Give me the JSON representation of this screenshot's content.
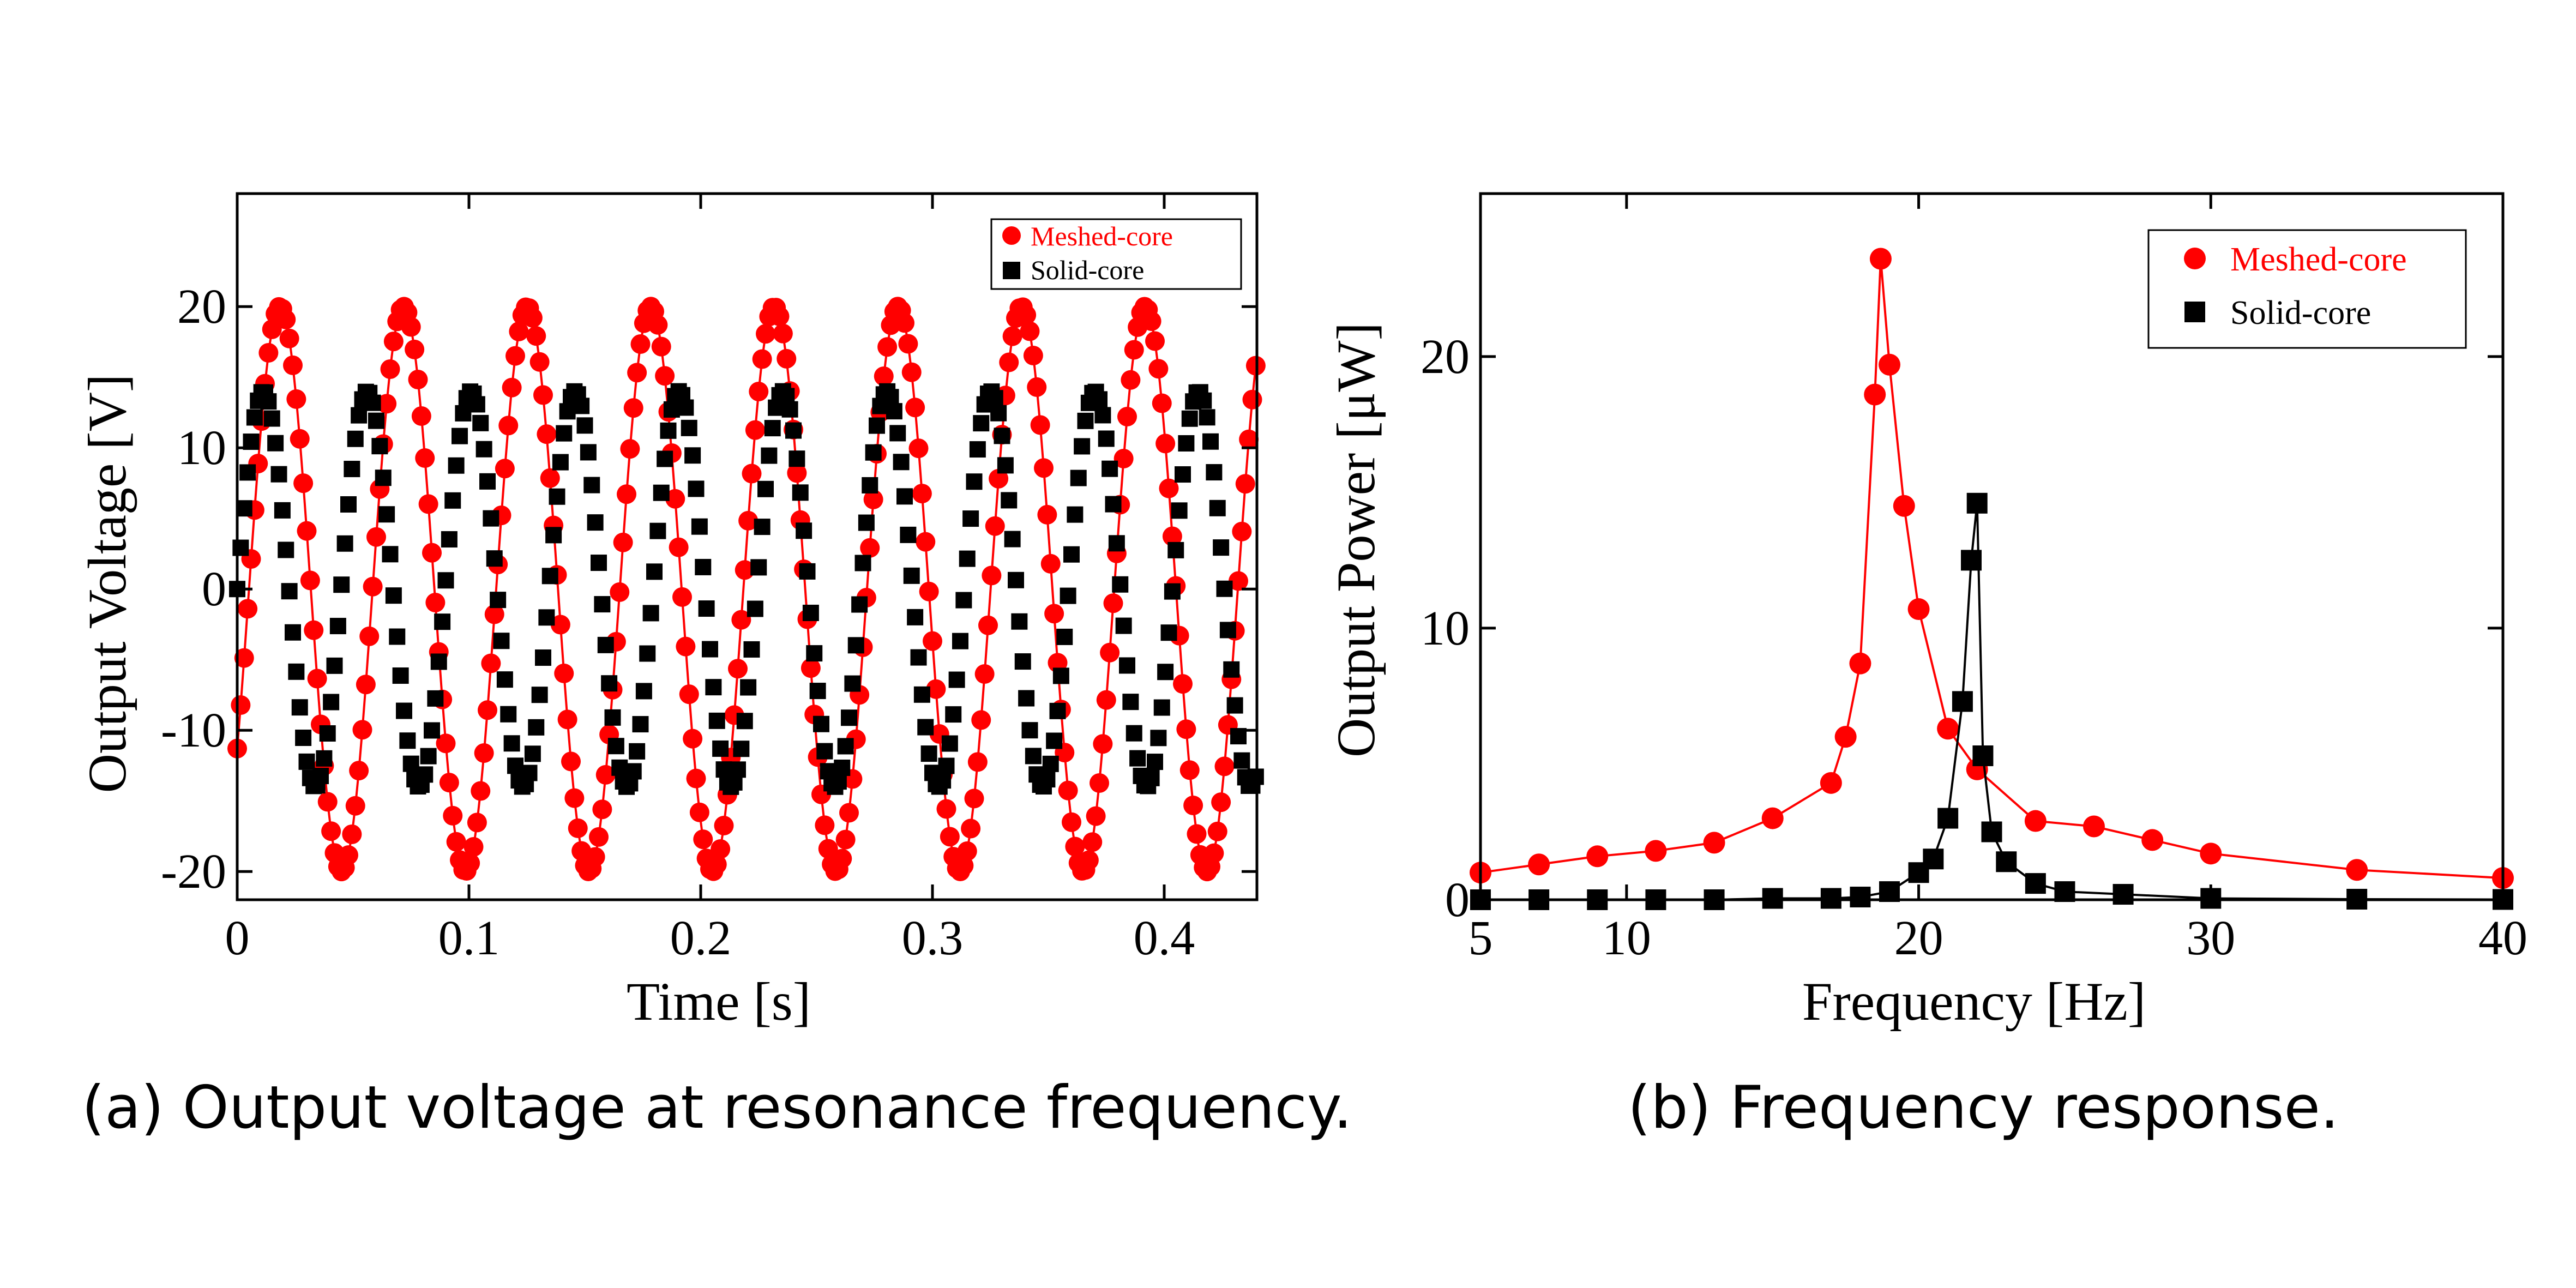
{
  "colors": {
    "meshed": "#ff0000",
    "solid": "#000000",
    "axis": "#000000",
    "background": "#ffffff"
  },
  "chart_data": [
    {
      "id": "a",
      "type": "scatter",
      "caption": "(a) Output voltage at resonance frequency.",
      "xlabel": "Time [s]",
      "ylabel": "Output Voltage [V]",
      "xlim": [
        0,
        0.44
      ],
      "ylim": [
        -22,
        28
      ],
      "xticks": [
        0,
        0.1,
        0.2,
        0.3,
        0.4
      ],
      "xtick_labels": [
        "0",
        "0.1",
        "0.2",
        "0.3",
        "0.4"
      ],
      "yticks": [
        -20,
        -10,
        0,
        10,
        20
      ],
      "ytick_labels": [
        "-20",
        "-10",
        "0",
        "10",
        "20"
      ],
      "legend": {
        "position": "top-right",
        "entries": [
          {
            "label": "Meshed-core",
            "marker": "circle",
            "color": "#ff0000"
          },
          {
            "label": "Solid-core",
            "marker": "square",
            "color": "#000000"
          }
        ]
      },
      "series": [
        {
          "name": "Meshed-core",
          "marker": "circle",
          "color": "#ff0000",
          "line": true,
          "model": {
            "kind": "sine",
            "amplitude": 20,
            "frequency_hz": 18.75,
            "phase_rad": -0.6,
            "t_start": 0.0,
            "t_end": 0.44,
            "step": 0.0015
          }
        },
        {
          "name": "Solid-core",
          "marker": "square",
          "color": "#000000",
          "line": false,
          "model": {
            "kind": "sine",
            "amplitude": 14,
            "frequency_hz": 22.3,
            "phase_rad": 0.0,
            "t_start": 0.0,
            "t_end": 0.44,
            "step": 0.0015
          }
        }
      ]
    },
    {
      "id": "b",
      "type": "line",
      "caption": "(b) Frequency response.",
      "xlabel": "Frequency [Hz]",
      "ylabel": "Output Power [μW]",
      "xlim": [
        5,
        40
      ],
      "ylim": [
        0,
        26
      ],
      "xticks": [
        5,
        10,
        20,
        30,
        40
      ],
      "xtick_labels": [
        "5",
        "10",
        "20",
        "30",
        "40"
      ],
      "yticks": [
        0,
        10,
        20
      ],
      "ytick_labels": [
        "0",
        "10",
        "20"
      ],
      "legend": {
        "position": "top-right",
        "entries": [
          {
            "label": "Meshed-core",
            "marker": "circle",
            "color": "#ff0000"
          },
          {
            "label": "Solid-core",
            "marker": "square",
            "color": "#000000"
          }
        ]
      },
      "series": [
        {
          "name": "Meshed-core",
          "marker": "circle",
          "color": "#ff0000",
          "x": [
            5,
            7,
            9,
            11,
            13,
            15,
            17,
            17.5,
            18,
            18.5,
            18.7,
            19,
            19.5,
            20,
            21,
            22,
            24,
            26,
            28,
            30,
            35,
            40
          ],
          "y": [
            1.0,
            1.3,
            1.6,
            1.8,
            2.1,
            3.0,
            4.3,
            6.0,
            8.7,
            18.6,
            23.6,
            19.7,
            14.5,
            10.7,
            6.3,
            4.8,
            2.9,
            2.7,
            2.2,
            1.7,
            1.1,
            0.8
          ]
        },
        {
          "name": "Solid-core",
          "marker": "square",
          "color": "#000000",
          "x": [
            5,
            7,
            9,
            11,
            13,
            15,
            17,
            18,
            19,
            20,
            20.5,
            21,
            21.5,
            21.8,
            22,
            22.2,
            22.5,
            23,
            24,
            25,
            27,
            30,
            35,
            40
          ],
          "y": [
            0,
            0,
            0,
            0,
            0,
            0.05,
            0.05,
            0.1,
            0.3,
            1.0,
            1.5,
            3.0,
            7.3,
            12.5,
            14.6,
            5.3,
            2.5,
            1.4,
            0.6,
            0.3,
            0.2,
            0.05,
            0.02,
            0.01
          ]
        }
      ]
    }
  ]
}
